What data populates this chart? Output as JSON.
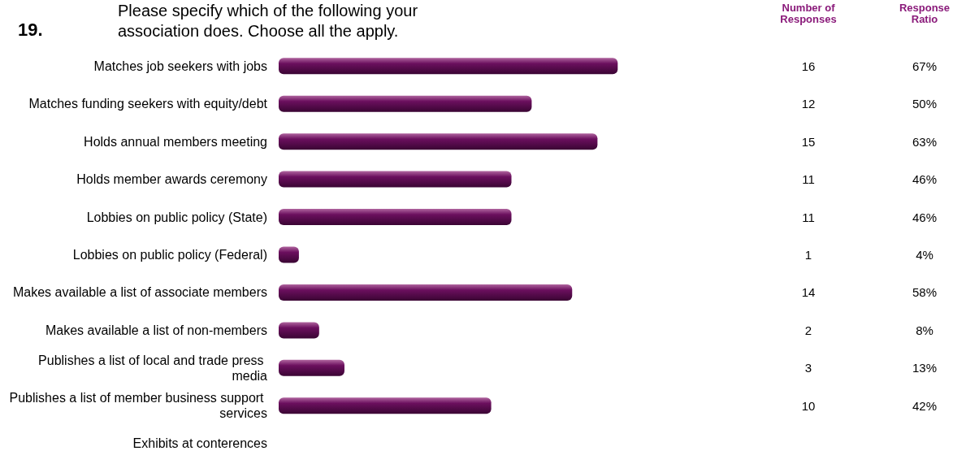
{
  "chart_data": {
    "type": "bar",
    "orientation": "horizontal",
    "title": "Please specify which of the following your association does. Choose all the apply.",
    "annotations": [
      "19.",
      "Number of Responses",
      "16",
      "12",
      "15",
      "11",
      "11",
      "1",
      "14",
      "2",
      "3",
      "10"
    ],
    "categories": [
      "Matches job seekers with jobs",
      "Matches funding seekers with equity/debt",
      "Holds annual members meeting",
      "Holds member awards ceremony",
      "Lobbies on public policy (State)",
      "Lobbies on public policy (Federal)",
      "Makes available a list of associate members",
      "Makes available a list of non-members",
      "Publishes a list of local and trade press media",
      "Publishes a list of member business support services",
      "Exhibits at conterences"
    ],
    "data_labels": true,
    "series": [
      {
        "name": "Response Ratio",
        "color": "#6b0f5e",
        "values": [
          67,
          50,
          63,
          46,
          46,
          4,
          58,
          8,
          13,
          42,
          null
        ],
        "value_labels": [
          "67%",
          "50%",
          "63%",
          "46%",
          "46%",
          "4%",
          "58%",
          "8%",
          "13%",
          "42%",
          null
        ]
      }
    ]
  }
}
